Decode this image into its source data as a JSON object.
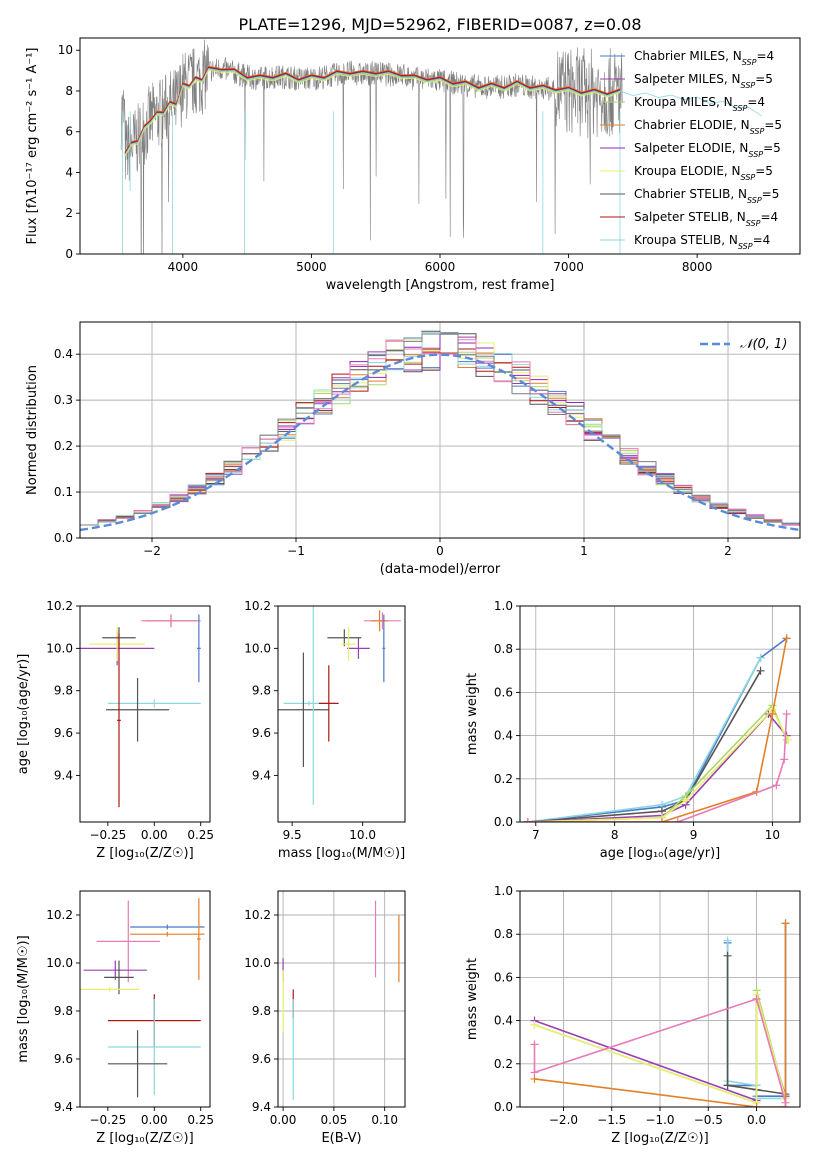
{
  "figure_title": "PLATE=1296, MJD=52962, FIBERID=0087, z=0.08",
  "colors": {
    "series": [
      "#4c78c8",
      "#9a3fb3",
      "#a8d86a",
      "#e37f28",
      "#8f26b8",
      "#e8ef6d",
      "#555555",
      "#b01414",
      "#8cd8e0",
      "#e87ab8",
      "#7d7d7d"
    ],
    "gauss": "#5b8bd8",
    "grid": "#b0b0b0",
    "data": "#7f7f7f"
  },
  "chart_data": [
    {
      "id": "spectrum",
      "type": "line",
      "title": "PLATE=1296, MJD=52962, FIBERID=0087, z=0.08",
      "xlabel": "wavelength [Angstrom, rest frame]",
      "ylabel": "Flux [fλ10⁻¹⁷ erg cm⁻² s⁻¹ A⁻¹]",
      "xlim": [
        3200,
        8800
      ],
      "ylim": [
        0,
        10.6
      ],
      "xticks": [
        4000,
        5000,
        6000,
        7000,
        8000
      ],
      "yticks": [
        0,
        2,
        4,
        6,
        8,
        10
      ],
      "grid": false,
      "legend_position": "right",
      "legend": [
        {
          "label": "Chabrier MILES, N",
          "sub": "SSP",
          "tail": "=4",
          "color": "#4c78c8"
        },
        {
          "label": "Salpeter MILES, N",
          "sub": "SSP",
          "tail": "=5",
          "color": "#9a3fb3"
        },
        {
          "label": "Kroupa MILES, N",
          "sub": "SSP",
          "tail": "=4",
          "color": "#a8d86a"
        },
        {
          "label": "Chabrier ELODIE, N",
          "sub": "SSP",
          "tail": "=5",
          "color": "#e37f28"
        },
        {
          "label": "Salpeter ELODIE, N",
          "sub": "SSP",
          "tail": "=5",
          "color": "#8f26b8"
        },
        {
          "label": "Kroupa ELODIE, N",
          "sub": "SSP",
          "tail": "=5",
          "color": "#e8ef6d"
        },
        {
          "label": "Chabrier STELIB, N",
          "sub": "SSP",
          "tail": "=5",
          "color": "#555555"
        },
        {
          "label": "Salpeter STELIB, N",
          "sub": "SSP",
          "tail": "=4",
          "color": "#b01414"
        },
        {
          "label": "Kroupa STELIB, N",
          "sub": "SSP",
          "tail": "=4",
          "color": "#8cd8e0"
        }
      ],
      "model_x": [
        3550,
        3600,
        3650,
        3700,
        3750,
        3800,
        3850,
        3900,
        3950,
        4000,
        4050,
        4100,
        4150,
        4200,
        4300,
        4400,
        4500,
        4600,
        4700,
        4800,
        4900,
        5000,
        5100,
        5200,
        5300,
        5400,
        5500,
        5600,
        5700,
        5800,
        5900,
        6000,
        6100,
        6200,
        6300,
        6400,
        6500,
        6600,
        6700,
        6800,
        6900,
        7000,
        7100,
        7200,
        7300,
        7400,
        7500,
        7600,
        7700,
        7800,
        7900,
        8000,
        8100,
        8200,
        8300,
        8400,
        8500
      ],
      "model_y": [
        5.0,
        5.3,
        5.6,
        6.1,
        6.6,
        6.8,
        7.0,
        7.3,
        7.4,
        8.2,
        8.3,
        8.5,
        8.6,
        9.0,
        9.1,
        8.9,
        8.7,
        8.6,
        8.7,
        8.7,
        8.6,
        8.6,
        8.7,
        8.8,
        8.9,
        8.8,
        8.9,
        8.8,
        8.8,
        8.6,
        8.6,
        8.5,
        8.4,
        8.3,
        8.2,
        8.2,
        8.2,
        8.3,
        8.2,
        8.1,
        8.1,
        8.0,
        7.95,
        7.9,
        7.9,
        7.9,
        7.9,
        7.8,
        7.8,
        7.7,
        7.7,
        7.6,
        7.5,
        7.4,
        7.3,
        7.1,
        6.9
      ]
    },
    {
      "id": "residuals",
      "type": "histogram",
      "xlabel": "(data-model)/error",
      "ylabel": "Normed distribution",
      "xlim": [
        -2.5,
        2.5
      ],
      "ylim": [
        0,
        0.47
      ],
      "xticks": [
        -2,
        -1,
        0,
        1,
        2
      ],
      "yticks": [
        0.0,
        0.1,
        0.2,
        0.3,
        0.4
      ],
      "grid": true,
      "legend_label": "𝒩(0, 1)",
      "legend_position": "top-right"
    },
    {
      "id": "age_vs_z",
      "type": "errorbar",
      "xlabel": "Z [log₁₀(Z/Z☉)]",
      "ylabel": "age  [log₁₀(age/yr)]",
      "xlim": [
        -0.4,
        0.3
      ],
      "ylim": [
        9.18,
        10.2
      ],
      "xticks": [
        -0.25,
        0.0,
        0.25
      ],
      "yticks": [
        9.4,
        9.6,
        9.8,
        10.0,
        10.2
      ],
      "grid": false,
      "points": [
        {
          "x": -0.2,
          "y": 10.0,
          "xerr": 0.2,
          "yerr": 0.08,
          "color": "#9a3fb3"
        },
        {
          "x": -0.2,
          "y": 10.02,
          "xerr": 0.15,
          "yerr": 0.08,
          "color": "#e8ef6d"
        },
        {
          "x": -0.19,
          "y": 10.05,
          "xerr": 0.09,
          "yerr": 0.05,
          "color": "#555555"
        },
        {
          "x": 0.09,
          "y": 10.13,
          "xerr": 0.14,
          "yerr": 0.03,
          "color": "#e37f28"
        },
        {
          "x": 0.09,
          "y": 10.13,
          "xerr": 0.16,
          "yerr": 0.03,
          "color": "#e87ab8"
        },
        {
          "x": 0.24,
          "y": 10.0,
          "xerr": 0.01,
          "yerr": 0.16,
          "color": "#4c78c8"
        },
        {
          "x": 0.0,
          "y": 9.74,
          "xerr": 0.25,
          "yerr": 0.02,
          "color": "#8cd8e0"
        },
        {
          "x": -0.09,
          "y": 9.71,
          "xerr": 0.17,
          "yerr": 0.15,
          "color": "#555555"
        },
        {
          "x": -0.19,
          "y": 9.66,
          "xerr": 0.01,
          "yerr": 0.41,
          "color": "#b01414"
        }
      ]
    },
    {
      "id": "age_vs_mass",
      "type": "errorbar",
      "xlabel": "mass [log₁₀(M/M☉)]",
      "xlim": [
        9.4,
        10.3
      ],
      "ylim": [
        9.18,
        10.2
      ],
      "xticks": [
        9.5,
        10.0
      ],
      "yticks": [
        9.4,
        9.6,
        9.8,
        10.0,
        10.2
      ],
      "grid": false,
      "points": [
        {
          "x": 9.87,
          "y": 10.05,
          "xerr": 0.12,
          "yerr": 0.04,
          "color": "#555555"
        },
        {
          "x": 9.97,
          "y": 10.0,
          "xerr": 0.08,
          "yerr": 0.05,
          "color": "#9a3fb3"
        },
        {
          "x": 9.9,
          "y": 10.02,
          "xerr": 0.05,
          "yerr": 0.08,
          "color": "#e8ef6d"
        },
        {
          "x": 10.14,
          "y": 10.13,
          "xerr": 0.13,
          "yerr": 0.04,
          "color": "#e87ab8"
        },
        {
          "x": 10.12,
          "y": 10.13,
          "xerr": 0.06,
          "yerr": 0.05,
          "color": "#e37f28"
        },
        {
          "x": 10.15,
          "y": 10.0,
          "xerr": 0.01,
          "yerr": 0.16,
          "color": "#4c78c8"
        },
        {
          "x": 9.62,
          "y": 9.74,
          "xerr": 0.18,
          "yerr": 0.01,
          "color": "#8cd8e0"
        },
        {
          "x": 9.58,
          "y": 9.71,
          "xerr": 0.18,
          "yerr": 0.27,
          "color": "#555555"
        },
        {
          "x": 9.76,
          "y": 9.74,
          "xerr": 0.07,
          "yerr": 0.18,
          "color": "#b01414"
        },
        {
          "x": 9.65,
          "y": 9.74,
          "xerr": 0.01,
          "yerr": 0.48,
          "color": "#8cd8e0"
        }
      ]
    },
    {
      "id": "mass_weight_vs_age",
      "type": "line",
      "xlabel": "age  [log₁₀(age/yr)]",
      "ylabel": "mass weight",
      "xlim": [
        6.8,
        10.35
      ],
      "ylim": [
        0,
        1.0
      ],
      "xticks": [
        7,
        8,
        9,
        10
      ],
      "yticks": [
        0.0,
        0.2,
        0.4,
        0.6,
        0.8,
        1.0
      ],
      "grid": true,
      "series": [
        {
          "color": "#4c78c8",
          "x": [
            6.9,
            8.6,
            8.9,
            9.85,
            10.18
          ],
          "y": [
            0.0,
            0.07,
            0.1,
            0.76,
            0.85
          ]
        },
        {
          "color": "#8cd8e0",
          "x": [
            6.9,
            8.6,
            8.9,
            9.85
          ],
          "y": [
            0.0,
            0.08,
            0.12,
            0.76
          ]
        },
        {
          "color": "#555555",
          "x": [
            6.9,
            8.6,
            8.9,
            9.85
          ],
          "y": [
            0.0,
            0.05,
            0.1,
            0.7
          ]
        },
        {
          "color": "#9a3fb3",
          "x": [
            6.9,
            8.6,
            8.9,
            9.95,
            10.18
          ],
          "y": [
            0.0,
            0.03,
            0.08,
            0.5,
            0.4
          ]
        },
        {
          "color": "#a8d86a",
          "x": [
            6.9,
            8.6,
            8.9,
            10.0,
            10.18
          ],
          "y": [
            0.0,
            0.02,
            0.12,
            0.54,
            0.38
          ]
        },
        {
          "color": "#e8ef6d",
          "x": [
            6.9,
            8.6,
            8.9,
            10.0,
            10.2
          ],
          "y": [
            0.0,
            0.02,
            0.1,
            0.52,
            0.38
          ]
        },
        {
          "color": "#e37f28",
          "x": [
            6.9,
            8.6,
            9.8,
            10.0,
            10.18
          ],
          "y": [
            0.0,
            0.0,
            0.14,
            0.5,
            0.85
          ]
        },
        {
          "color": "#e87ab8",
          "x": [
            6.9,
            8.8,
            10.05,
            10.15,
            10.18
          ],
          "y": [
            0.0,
            0.0,
            0.17,
            0.29,
            0.5
          ]
        }
      ]
    },
    {
      "id": "mass_vs_z",
      "type": "errorbar",
      "xlabel": "Z [log₁₀(Z/Z☉)]",
      "ylabel": "mass [log₁₀(M/M☉)]",
      "xlim": [
        -0.4,
        0.3
      ],
      "ylim": [
        9.4,
        10.3
      ],
      "xticks": [
        -0.25,
        0.0,
        0.25
      ],
      "yticks": [
        9.4,
        9.6,
        9.8,
        10.0,
        10.2
      ],
      "grid": false,
      "points": [
        {
          "x": 0.07,
          "y": 10.15,
          "xerr": 0.2,
          "yerr": 0.01,
          "color": "#4c78c8"
        },
        {
          "x": 0.07,
          "y": 10.12,
          "xerr": 0.2,
          "yerr": 0.01,
          "color": "#e37f28"
        },
        {
          "x": -0.14,
          "y": 10.09,
          "xerr": 0.17,
          "yerr": 0.17,
          "color": "#e87ab8"
        },
        {
          "x": 0.24,
          "y": 10.1,
          "xerr": 0.01,
          "yerr": 0.17,
          "color": "#e37f28"
        },
        {
          "x": -0.21,
          "y": 9.97,
          "xerr": 0.17,
          "yerr": 0.04,
          "color": "#9a3fb3"
        },
        {
          "x": -0.19,
          "y": 9.94,
          "xerr": 0.08,
          "yerr": 0.07,
          "color": "#555555"
        },
        {
          "x": -0.24,
          "y": 9.89,
          "xerr": 0.16,
          "yerr": 0.01,
          "color": "#e8ef6d"
        },
        {
          "x": 0.0,
          "y": 9.76,
          "xerr": 0.25,
          "yerr": 0.11,
          "color": "#b01414"
        },
        {
          "x": 0.0,
          "y": 9.65,
          "xerr": 0.25,
          "yerr": 0.2,
          "color": "#8cd8e0"
        },
        {
          "x": -0.09,
          "y": 9.58,
          "xerr": 0.16,
          "yerr": 0.14,
          "color": "#555555"
        }
      ]
    },
    {
      "id": "mass_vs_ebv",
      "type": "errorbar",
      "xlabel": "E(B-V)",
      "xlim": [
        -0.005,
        0.12
      ],
      "ylim": [
        9.4,
        10.3
      ],
      "xticks": [
        0.0,
        0.05,
        0.1
      ],
      "yticks": [
        9.4,
        9.6,
        9.8,
        10.0,
        10.2
      ],
      "grid": true,
      "points": [
        {
          "x": 0.0,
          "y": 9.97,
          "xerr": 0.0,
          "yerr": 0.05,
          "color": "#9a3fb3"
        },
        {
          "x": 0.0,
          "y": 9.84,
          "xerr": 0.0,
          "yerr": 0.13,
          "color": "#e8ef6d"
        },
        {
          "x": 0.01,
          "y": 9.83,
          "xerr": 0.0,
          "yerr": 0.06,
          "color": "#b01414"
        },
        {
          "x": 0.01,
          "y": 9.64,
          "xerr": 0.0,
          "yerr": 0.21,
          "color": "#8cd8e0"
        },
        {
          "x": 0.091,
          "y": 10.1,
          "xerr": 0.0,
          "yerr": 0.16,
          "color": "#e87ab8"
        },
        {
          "x": 0.114,
          "y": 10.06,
          "xerr": 0.0,
          "yerr": 0.14,
          "color": "#e37f28"
        }
      ]
    },
    {
      "id": "mass_weight_vs_z",
      "type": "line",
      "xlabel": "Z [log₁₀(Z/Z☉)]",
      "ylabel": "mass weight",
      "xlim": [
        -2.45,
        0.45
      ],
      "ylim": [
        0,
        1.0
      ],
      "xticks": [
        -2.0,
        -1.5,
        -1.0,
        -0.5,
        0.0
      ],
      "yticks": [
        0.0,
        0.2,
        0.4,
        0.6,
        0.8,
        1.0
      ],
      "grid": true,
      "series": [
        {
          "color": "#4c78c8",
          "x": [
            -0.3,
            -0.3,
            0.0,
            0.0,
            0.3,
            0.3
          ],
          "y": [
            0.76,
            0.1,
            0.1,
            0.05,
            0.05,
            0.85
          ]
        },
        {
          "color": "#8cd8e0",
          "x": [
            -0.3,
            -0.3,
            0.0,
            0.0,
            0.3
          ],
          "y": [
            0.77,
            0.12,
            0.1,
            0.04,
            0.04
          ]
        },
        {
          "color": "#555555",
          "x": [
            -0.3,
            -0.3,
            0.0,
            0.3
          ],
          "y": [
            0.7,
            0.1,
            0.08,
            0.06
          ]
        },
        {
          "color": "#9a3fb3",
          "x": [
            -2.3,
            0.0,
            0.0,
            0.3
          ],
          "y": [
            0.4,
            0.03,
            0.5,
            0.05
          ]
        },
        {
          "color": "#a8d86a",
          "x": [
            -2.3,
            0.0,
            0.0,
            0.3
          ],
          "y": [
            0.38,
            0.02,
            0.54,
            0.04
          ]
        },
        {
          "color": "#e8ef6d",
          "x": [
            -2.3,
            0.0,
            0.0,
            0.3
          ],
          "y": [
            0.38,
            0.02,
            0.52,
            0.04
          ]
        },
        {
          "color": "#e37f28",
          "x": [
            -2.3,
            0.0,
            0.3,
            0.3
          ],
          "y": [
            0.13,
            0.0,
            0.0,
            0.85
          ]
        },
        {
          "color": "#e87ab8",
          "x": [
            -2.3,
            -2.3,
            0.0,
            0.3
          ],
          "y": [
            0.29,
            0.16,
            0.5,
            0.02
          ]
        }
      ]
    }
  ]
}
